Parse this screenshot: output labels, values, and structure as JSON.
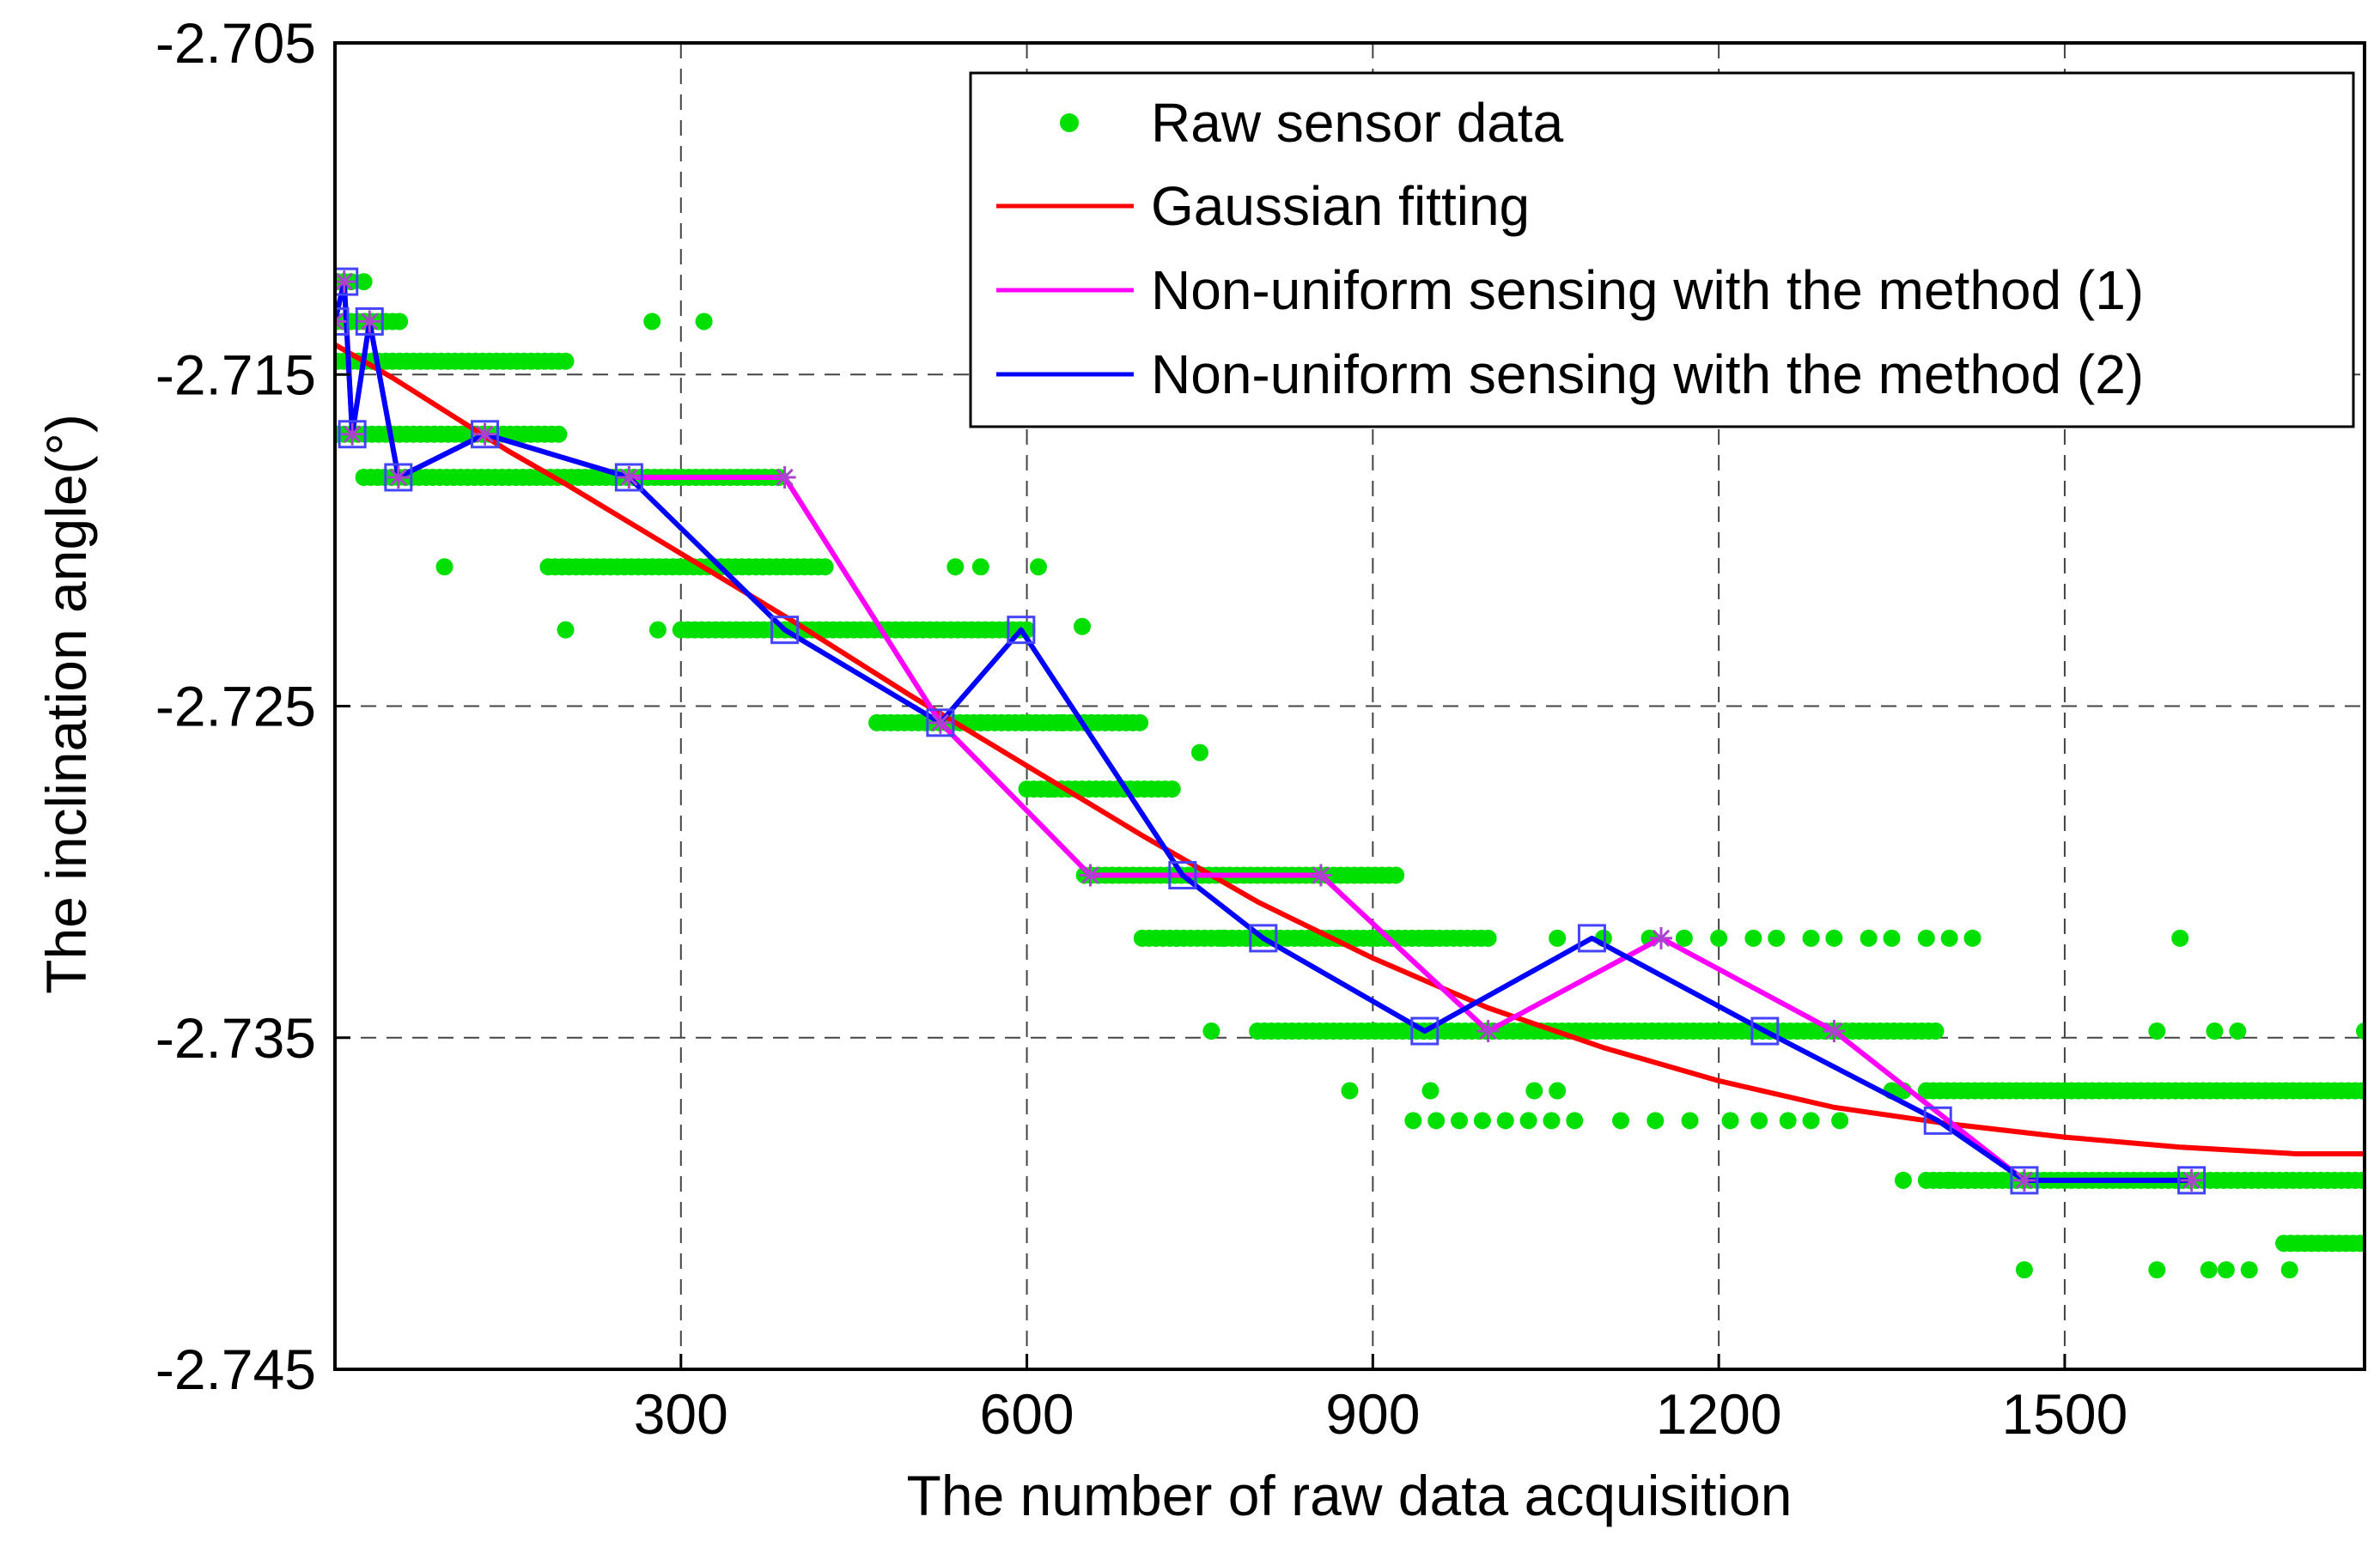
{
  "chart_data": {
    "type": "line",
    "title": "",
    "xlabel": "The number of raw data acquisition",
    "ylabel": "The inclination angle(°)",
    "xlim": [
      0,
      1760
    ],
    "ylim": [
      -2.745,
      -2.705
    ],
    "xticks": [
      300,
      600,
      900,
      1200,
      1500
    ],
    "xtick_labels": [
      "300",
      "600",
      "900",
      "1200",
      "1500"
    ],
    "yticks": [
      -2.705,
      -2.715,
      -2.725,
      -2.735,
      -2.745
    ],
    "ytick_labels": [
      "-2.705",
      "-2.715",
      "-2.725",
      "-2.735",
      "-2.745"
    ],
    "grid": true,
    "legend_position": "top-right",
    "colors": {
      "raw": "#00e000",
      "gaussian": "#ff0000",
      "method1": "#ff00ff",
      "method2": "#0000ff",
      "marker_square": "#4444ff",
      "marker_star": "#aa44cc"
    },
    "legend": [
      {
        "label": "Raw sensor data",
        "style": "dots",
        "color": "#00e000"
      },
      {
        "label": "Gaussian fitting",
        "style": "line",
        "color": "#ff0000"
      },
      {
        "label": "Non-uniform sensing with the method (1)",
        "style": "line",
        "color": "#ff00ff"
      },
      {
        "label": "Non-uniform sensing with the method (2)",
        "style": "line",
        "color": "#0000ff"
      }
    ],
    "raw_data": {
      "type": "scatter",
      "point_step": 6,
      "segments": [
        {
          "y": -2.7122,
          "x0": 2,
          "x1": 18
        },
        {
          "y": -2.7134,
          "x0": 2,
          "x1": 60
        },
        {
          "y": -2.7146,
          "x0": 2,
          "x1": 200
        },
        {
          "y": -2.7168,
          "x0": 2,
          "x1": 195
        },
        {
          "y": -2.7181,
          "x0": 25,
          "x1": 390
        },
        {
          "y": -2.7208,
          "x0": 185,
          "x1": 430
        },
        {
          "y": -2.7227,
          "x0": 300,
          "x1": 600
        },
        {
          "y": -2.7255,
          "x0": 470,
          "x1": 700
        },
        {
          "y": -2.7275,
          "x0": 600,
          "x1": 730
        },
        {
          "y": -2.7301,
          "x0": 650,
          "x1": 920
        },
        {
          "y": -2.732,
          "x0": 700,
          "x1": 1000
        },
        {
          "y": -2.7348,
          "x0": 800,
          "x1": 1390
        },
        {
          "y": -2.7366,
          "x0": 1380,
          "x1": 1760
        },
        {
          "y": -2.7393,
          "x0": 1380,
          "x1": 1760
        },
        {
          "y": -2.7412,
          "x0": 1690,
          "x1": 1760
        }
      ],
      "points": [
        [
          25,
          -2.7122
        ],
        [
          320,
          -2.7134
        ],
        [
          275,
          -2.7134
        ],
        [
          95,
          -2.7208
        ],
        [
          200,
          -2.7227
        ],
        [
          280,
          -2.7227
        ],
        [
          560,
          -2.7208
        ],
        [
          610,
          -2.7208
        ],
        [
          538,
          -2.7208
        ],
        [
          630,
          -2.7255
        ],
        [
          620,
          -2.7275
        ],
        [
          648,
          -2.7226
        ],
        [
          750,
          -2.7264
        ],
        [
          730,
          -2.732
        ],
        [
          770,
          -2.732
        ],
        [
          760,
          -2.7348
        ],
        [
          560,
          -2.7255
        ],
        [
          1060,
          -2.732
        ],
        [
          1100,
          -2.732
        ],
        [
          1140,
          -2.732
        ],
        [
          1170,
          -2.732
        ],
        [
          1200,
          -2.732
        ],
        [
          1230,
          -2.732
        ],
        [
          1250,
          -2.732
        ],
        [
          1280,
          -2.732
        ],
        [
          1300,
          -2.732
        ],
        [
          1330,
          -2.732
        ],
        [
          1350,
          -2.732
        ],
        [
          1380,
          -2.732
        ],
        [
          1400,
          -2.732
        ],
        [
          1420,
          -2.732
        ],
        [
          870,
          -2.732
        ],
        [
          900,
          -2.732
        ],
        [
          950,
          -2.732
        ],
        [
          880,
          -2.7366
        ],
        [
          950,
          -2.7366
        ],
        [
          1040,
          -2.7366
        ],
        [
          1060,
          -2.7366
        ],
        [
          935,
          -2.7375
        ],
        [
          955,
          -2.7375
        ],
        [
          975,
          -2.7375
        ],
        [
          995,
          -2.7375
        ],
        [
          1015,
          -2.7375
        ],
        [
          1035,
          -2.7375
        ],
        [
          1055,
          -2.7375
        ],
        [
          1075,
          -2.7375
        ],
        [
          1115,
          -2.7375
        ],
        [
          1145,
          -2.7375
        ],
        [
          1175,
          -2.7375
        ],
        [
          1210,
          -2.7375
        ],
        [
          1235,
          -2.7375
        ],
        [
          1260,
          -2.7375
        ],
        [
          1280,
          -2.7375
        ],
        [
          1305,
          -2.7375
        ],
        [
          1360,
          -2.7393
        ],
        [
          1400,
          -2.7393
        ],
        [
          1350,
          -2.7366
        ],
        [
          1360,
          -2.7366
        ],
        [
          1465,
          -2.742
        ],
        [
          1580,
          -2.742
        ],
        [
          1625,
          -2.742
        ],
        [
          1640,
          -2.742
        ],
        [
          1660,
          -2.742
        ],
        [
          1695,
          -2.742
        ],
        [
          1600,
          -2.732
        ],
        [
          1580,
          -2.7348
        ],
        [
          1630,
          -2.7348
        ],
        [
          1650,
          -2.7348
        ],
        [
          1760,
          -2.7348
        ]
      ]
    },
    "series": [
      {
        "name": "Gaussian fitting",
        "color": "#ff0000",
        "x": [
          0,
          50,
          100,
          150,
          200,
          300,
          400,
          500,
          600,
          700,
          800,
          900,
          1000,
          1100,
          1200,
          1300,
          1400,
          1500,
          1600,
          1700,
          1760
        ],
        "y": [
          -2.7141,
          -2.7151,
          -2.7162,
          -2.7173,
          -2.7183,
          -2.7204,
          -2.7225,
          -2.7247,
          -2.7268,
          -2.7289,
          -2.7309,
          -2.7326,
          -2.7341,
          -2.7353,
          -2.7363,
          -2.7371,
          -2.7376,
          -2.738,
          -2.7383,
          -2.7385,
          -2.7385
        ]
      },
      {
        "name": "Non-uniform sensing with the method (1)",
        "color": "#ff00ff",
        "marker": "star",
        "x": [
          0,
          8,
          15,
          30,
          55,
          130,
          255,
          390,
          525,
          655,
          855,
          1000,
          1150,
          1300,
          1465,
          1610
        ],
        "y": [
          -2.7134,
          -2.7122,
          -2.7168,
          -2.7134,
          -2.7181,
          -2.7168,
          -2.7181,
          -2.7181,
          -2.7255,
          -2.7301,
          -2.7301,
          -2.7348,
          -2.732,
          -2.7348,
          -2.7393,
          -2.7393
        ]
      },
      {
        "name": "Non-uniform sensing with the method (2)",
        "color": "#0000ff",
        "marker": "square",
        "x": [
          0,
          8,
          15,
          30,
          55,
          130,
          255,
          390,
          525,
          595,
          735,
          805,
          945,
          1090,
          1240,
          1390,
          1465,
          1610
        ],
        "y": [
          -2.7134,
          -2.7122,
          -2.7168,
          -2.7134,
          -2.7181,
          -2.7168,
          -2.7181,
          -2.7227,
          -2.7255,
          -2.7227,
          -2.7301,
          -2.732,
          -2.7348,
          -2.732,
          -2.7348,
          -2.7375,
          -2.7393,
          -2.7393
        ]
      }
    ]
  }
}
